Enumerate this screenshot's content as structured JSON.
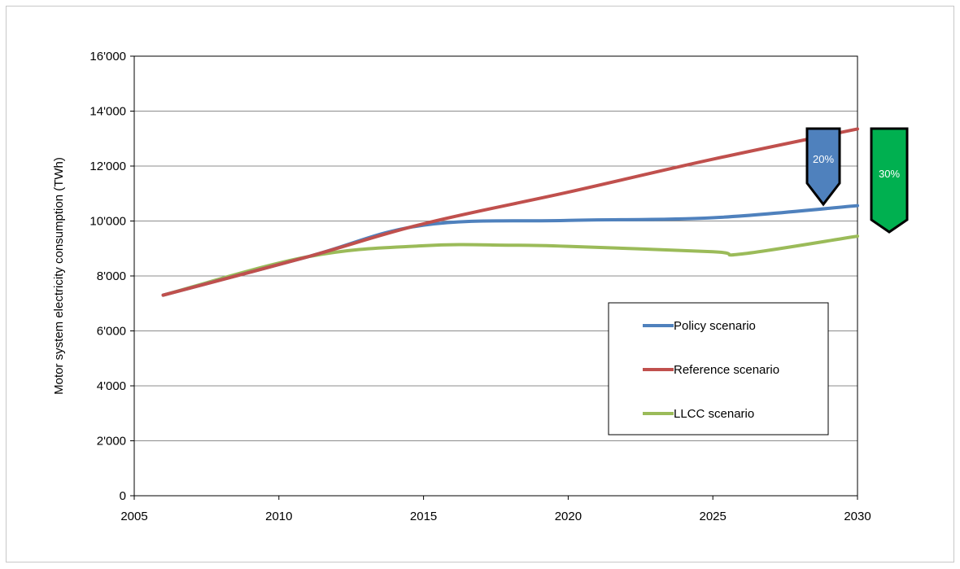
{
  "chart_data": {
    "type": "line",
    "title": "",
    "xlabel": "",
    "ylabel": "Motor system electricity consumption (TWh)",
    "xlim": [
      2005,
      2030
    ],
    "ylim": [
      0,
      16000
    ],
    "x_ticks": [
      2005,
      2010,
      2015,
      2020,
      2025,
      2030
    ],
    "y_ticks": [
      0,
      2000,
      4000,
      6000,
      8000,
      10000,
      12000,
      14000,
      16000
    ],
    "y_tick_labels": [
      "0",
      "2'000",
      "4'000",
      "6'000",
      "8'000",
      "10'000",
      "12'000",
      "14'000",
      "16'000"
    ],
    "grid": "horizontal",
    "legend_position": "lower-right",
    "series": [
      {
        "name": "Policy scenario",
        "color": "#4f81bd",
        "points": [
          [
            2006,
            7300
          ],
          [
            2011,
            8700
          ],
          [
            2015,
            9850
          ],
          [
            2020,
            10020
          ],
          [
            2025,
            10120
          ],
          [
            2030,
            10560
          ]
        ]
      },
      {
        "name": "Reference scenario",
        "color": "#c0504d",
        "points": [
          [
            2006,
            7300
          ],
          [
            2011,
            8700
          ],
          [
            2015,
            9900
          ],
          [
            2020,
            11050
          ],
          [
            2025,
            12250
          ],
          [
            2030,
            13350
          ]
        ]
      },
      {
        "name": "LLCC scenario",
        "color": "#9bbb59",
        "points": [
          [
            2006,
            7300
          ],
          [
            2011,
            8700
          ],
          [
            2015,
            9100
          ],
          [
            2018,
            9120
          ],
          [
            2020,
            9080
          ],
          [
            2025,
            8880
          ],
          [
            2026,
            8800
          ],
          [
            2030,
            9450
          ]
        ]
      }
    ],
    "annotations": [
      {
        "text": "20%",
        "color": "#4f81bd"
      },
      {
        "text": "30%",
        "color": "#00b050"
      }
    ]
  }
}
